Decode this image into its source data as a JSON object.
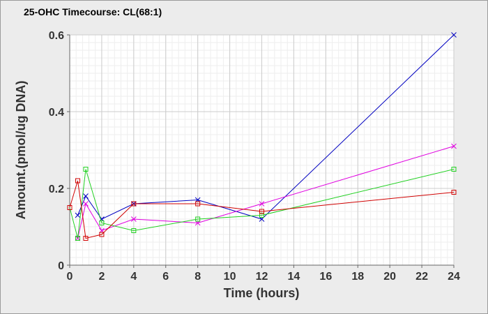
{
  "chart_data": {
    "type": "line",
    "title": "25-OHC Timecourse: CL(68:1)",
    "xlabel": "Time (hours)",
    "ylabel": "Amount.(pmol/ug DNA)",
    "xlim": [
      0,
      24
    ],
    "ylim": [
      0,
      0.6
    ],
    "xticks": [
      "0",
      "2",
      "4",
      "6",
      "8",
      "10",
      "12",
      "14",
      "16",
      "18",
      "20",
      "22",
      "24"
    ],
    "yticks": [
      "0",
      "0.2",
      "0.4",
      "0.6"
    ],
    "grid": true,
    "legend": "none",
    "series": [
      {
        "color": "#0000c0",
        "marker": "x",
        "x": [
          0.5,
          1,
          2,
          4,
          8,
          12,
          24
        ],
        "y": [
          0.13,
          0.18,
          0.12,
          0.16,
          0.17,
          0.12,
          0.6
        ]
      },
      {
        "color": "#e000e0",
        "marker": "x",
        "x": [
          0.5,
          1,
          2,
          4,
          8,
          12,
          24
        ],
        "y": [
          0.07,
          0.16,
          0.09,
          0.12,
          0.11,
          0.16,
          0.31
        ]
      },
      {
        "color": "#20d020",
        "marker": "square",
        "x": [
          0,
          0.5,
          1,
          2,
          4,
          8,
          12,
          24
        ],
        "y": [
          0.15,
          0.07,
          0.25,
          0.11,
          0.09,
          0.12,
          0.13,
          0.25
        ]
      },
      {
        "color": "#d00000",
        "marker": "square",
        "x": [
          0,
          0.5,
          1,
          2,
          4,
          8,
          12,
          24
        ],
        "y": [
          0.15,
          0.22,
          0.07,
          0.08,
          0.16,
          0.16,
          0.14,
          0.19
        ]
      }
    ]
  }
}
